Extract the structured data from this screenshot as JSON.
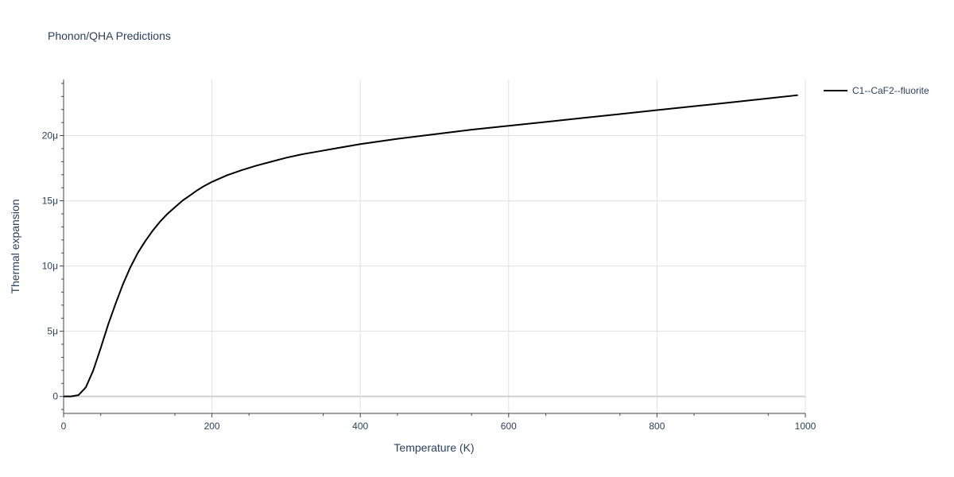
{
  "chart_data": {
    "type": "line",
    "title": "Phonon/QHA Predictions",
    "xlabel": "Temperature (K)",
    "ylabel": "Thermal expansion",
    "xlim": [
      0,
      1000
    ],
    "ylim": [
      -1.3,
      24.3
    ],
    "x_ticks": [
      0,
      200,
      400,
      600,
      800,
      1000
    ],
    "x_tick_labels": [
      "0",
      "200",
      "400",
      "600",
      "800",
      "1000"
    ],
    "y_ticks": [
      0,
      5,
      10,
      15,
      20
    ],
    "y_tick_labels": [
      "0",
      "5μ",
      "10μ",
      "15μ",
      "20μ"
    ],
    "y_unit_note": "values in units of 1e-6 (μ)",
    "grid": true,
    "legend_position": "top-right",
    "series": [
      {
        "name": "C1--CaF2--fluorite",
        "color": "#000000",
        "x": [
          0,
          10,
          20,
          30,
          40,
          50,
          60,
          70,
          80,
          90,
          100,
          110,
          120,
          130,
          140,
          150,
          160,
          170,
          180,
          190,
          200,
          220,
          240,
          260,
          280,
          300,
          320,
          340,
          360,
          380,
          400,
          450,
          500,
          550,
          600,
          650,
          700,
          750,
          800,
          850,
          900,
          950,
          990
        ],
        "y": [
          0,
          0,
          0.1,
          0.7,
          2.0,
          3.7,
          5.5,
          7.1,
          8.6,
          9.9,
          11.0,
          11.9,
          12.7,
          13.4,
          14.0,
          14.5,
          15.0,
          15.4,
          15.8,
          16.15,
          16.45,
          16.95,
          17.35,
          17.7,
          18.0,
          18.3,
          18.55,
          18.75,
          18.95,
          19.15,
          19.35,
          19.75,
          20.1,
          20.45,
          20.75,
          21.05,
          21.35,
          21.65,
          21.95,
          22.25,
          22.55,
          22.85,
          23.1
        ]
      }
    ]
  }
}
